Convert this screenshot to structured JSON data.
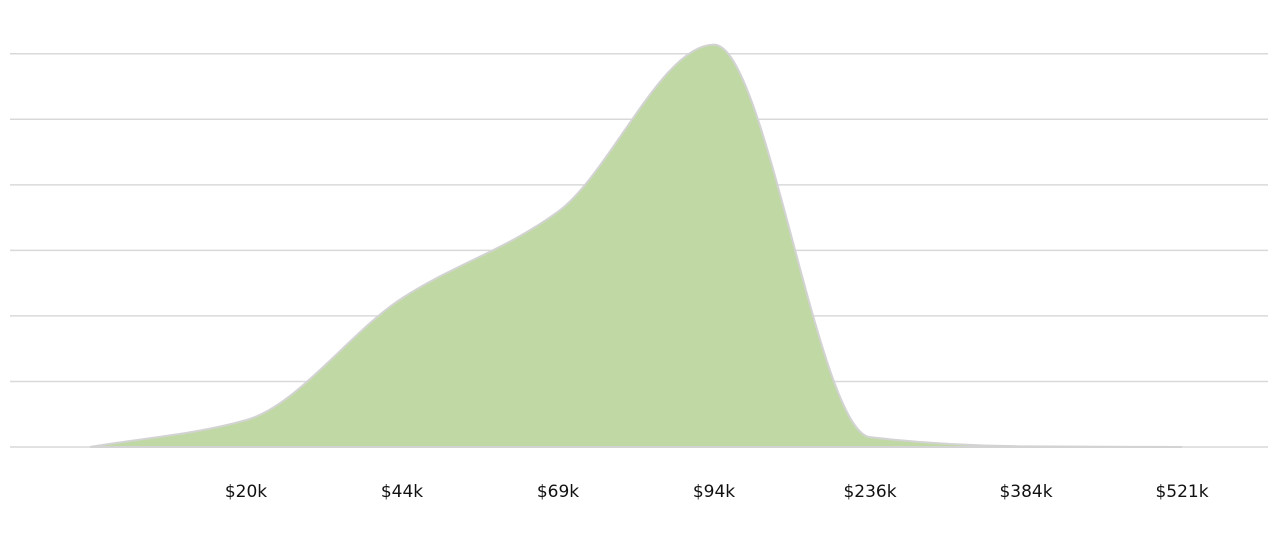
{
  "chart_data": {
    "type": "area",
    "categories": [
      null,
      "$20k",
      "$44k",
      "$69k",
      "$94k",
      "$236k",
      "$384k",
      "$521k"
    ],
    "values": [
      0,
      0.41,
      2.27,
      3.59,
      6.14,
      0.15,
      0.01,
      0
    ],
    "color": "#c0d9a4",
    "ylim": [
      0,
      6.5
    ],
    "yticks": [
      0,
      1,
      2,
      3,
      4,
      5,
      6
    ],
    "grid": true
  }
}
